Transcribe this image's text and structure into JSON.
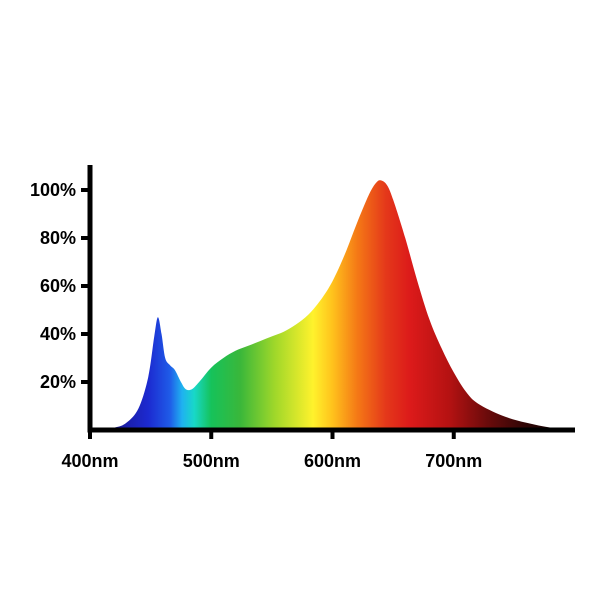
{
  "chart_data": {
    "type": "area",
    "x_ticks": [
      {
        "value": 400,
        "label": "400nm"
      },
      {
        "value": 500,
        "label": "500nm"
      },
      {
        "value": 600,
        "label": "600nm"
      },
      {
        "value": 700,
        "label": "700nm"
      }
    ],
    "y_ticks": [
      {
        "value": 20,
        "label": "20%"
      },
      {
        "value": 40,
        "label": "40%"
      },
      {
        "value": 60,
        "label": "60%"
      },
      {
        "value": 80,
        "label": "80%"
      },
      {
        "value": 100,
        "label": "100%"
      }
    ],
    "xlim": [
      400,
      800
    ],
    "ylim": [
      0,
      110
    ],
    "grid": false,
    "fill": "visible-spectrum color gradient",
    "series": [
      {
        "x": [
          400,
          420,
          430,
          440,
          448,
          453,
          456,
          459,
          462,
          466,
          470,
          475,
          479,
          484,
          490,
          500,
          510,
          520,
          530,
          540,
          550,
          560,
          570,
          580,
          590,
          600,
          610,
          620,
          630,
          636,
          640,
          645,
          650,
          660,
          670,
          680,
          690,
          700,
          710,
          720,
          740,
          760,
          780,
          800
        ],
        "y": [
          0,
          1,
          3,
          9,
          22,
          39,
          47,
          40,
          30,
          27,
          25,
          20,
          17,
          17,
          20,
          26,
          30,
          33,
          35,
          37,
          39,
          41,
          44,
          48,
          54,
          62,
          73,
          86,
          98,
          103,
          104,
          102,
          96,
          80,
          62,
          46,
          34,
          24,
          16,
          11,
          6,
          3,
          1,
          0
        ]
      }
    ]
  }
}
